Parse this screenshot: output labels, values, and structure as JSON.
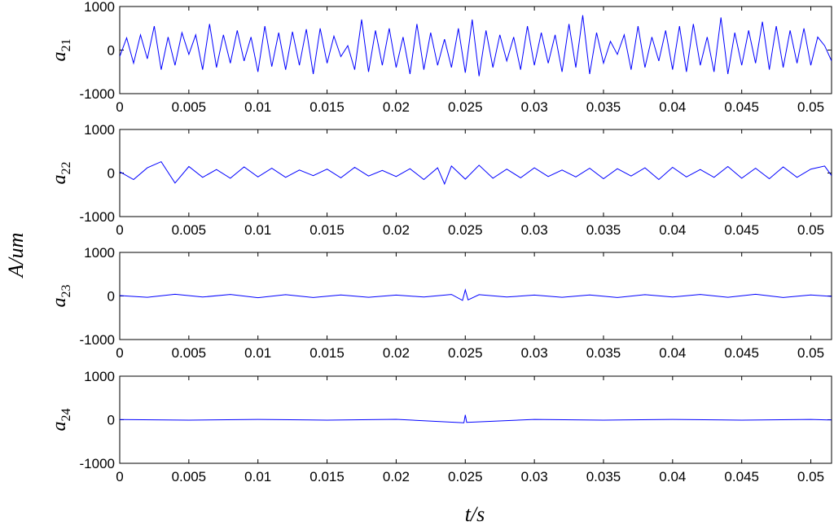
{
  "chart_data": {
    "type": "line",
    "shared_ylabel": "A/um",
    "shared_xlabel": "t/s",
    "line_color": "#0000ff",
    "xlim": [
      0,
      0.0515
    ],
    "x_ticks": [
      "0",
      "0.005",
      "0.01",
      "0.015",
      "0.02",
      "0.025",
      "0.03",
      "0.035",
      "0.04",
      "0.045",
      "0.05"
    ],
    "x_tick_values": [
      0,
      0.005,
      0.01,
      0.015,
      0.02,
      0.025,
      0.03,
      0.035,
      0.04,
      0.045,
      0.05
    ],
    "panels": [
      {
        "ylabel_main": "a",
        "ylabel_sub": "21",
        "ylim": [
          -1000,
          1000
        ],
        "y_ticks": [
          "1000",
          "0",
          "-1000"
        ],
        "series": [
          {
            "x": [
              0,
              0.0005,
              0.001,
              0.0015,
              0.002,
              0.0025,
              0.003,
              0.0035,
              0.004,
              0.0045,
              0.005,
              0.0055,
              0.006,
              0.0065,
              0.007,
              0.0075,
              0.008,
              0.0085,
              0.009,
              0.0095,
              0.01,
              0.0105,
              0.011,
              0.0115,
              0.012,
              0.0125,
              0.013,
              0.0135,
              0.014,
              0.0145,
              0.015,
              0.0155,
              0.016,
              0.0165,
              0.017,
              0.0175,
              0.018,
              0.0185,
              0.019,
              0.0195,
              0.02,
              0.0205,
              0.021,
              0.0215,
              0.022,
              0.0225,
              0.023,
              0.0235,
              0.024,
              0.0245,
              0.025,
              0.0255,
              0.026,
              0.0265,
              0.027,
              0.0275,
              0.028,
              0.0285,
              0.029,
              0.0295,
              0.03,
              0.0305,
              0.031,
              0.0315,
              0.032,
              0.0325,
              0.033,
              0.0335,
              0.034,
              0.0345,
              0.035,
              0.0355,
              0.036,
              0.0365,
              0.037,
              0.0375,
              0.038,
              0.0385,
              0.039,
              0.0395,
              0.04,
              0.0405,
              0.041,
              0.0415,
              0.042,
              0.0425,
              0.043,
              0.0435,
              0.044,
              0.0445,
              0.045,
              0.0455,
              0.046,
              0.0465,
              0.047,
              0.0475,
              0.048,
              0.0485,
              0.049,
              0.0495,
              0.05,
              0.0505,
              0.051,
              0.0515
            ],
            "y": [
              -150,
              280,
              -300,
              350,
              -200,
              550,
              -450,
              300,
              -350,
              400,
              -100,
              350,
              -450,
              600,
              -400,
              350,
              -300,
              450,
              -250,
              300,
              -500,
              550,
              -380,
              400,
              -450,
              420,
              -350,
              480,
              -550,
              500,
              -300,
              320,
              -150,
              100,
              -450,
              700,
              -500,
              450,
              -350,
              500,
              -400,
              300,
              -550,
              600,
              -450,
              400,
              -350,
              250,
              -400,
              500,
              -520,
              700,
              -600,
              450,
              -400,
              350,
              -250,
              300,
              -450,
              550,
              -350,
              400,
              -300,
              350,
              -500,
              600,
              -400,
              800,
              -550,
              400,
              -300,
              200,
              -100,
              350,
              -450,
              550,
              -400,
              300,
              -250,
              450,
              -450,
              550,
              -500,
              600,
              -350,
              300,
              -500,
              750,
              -550,
              400,
              -350,
              450,
              -300,
              650,
              -450,
              550,
              -400,
              450,
              -300,
              500,
              -350,
              300,
              100,
              -250
            ]
          }
        ]
      },
      {
        "ylabel_main": "a",
        "ylabel_sub": "22",
        "ylim": [
          -1000,
          1000
        ],
        "y_ticks": [
          "1000",
          "0",
          "-1000"
        ],
        "series": [
          {
            "x": [
              0,
              0.001,
              0.002,
              0.003,
              0.004,
              0.005,
              0.006,
              0.007,
              0.008,
              0.009,
              0.01,
              0.011,
              0.012,
              0.013,
              0.014,
              0.015,
              0.016,
              0.017,
              0.018,
              0.019,
              0.02,
              0.021,
              0.022,
              0.023,
              0.0235,
              0.024,
              0.025,
              0.026,
              0.027,
              0.028,
              0.029,
              0.03,
              0.031,
              0.032,
              0.033,
              0.034,
              0.035,
              0.036,
              0.037,
              0.038,
              0.039,
              0.04,
              0.041,
              0.042,
              0.043,
              0.044,
              0.045,
              0.046,
              0.047,
              0.048,
              0.049,
              0.05,
              0.051,
              0.0515
            ],
            "y": [
              30,
              -150,
              120,
              260,
              -230,
              150,
              -100,
              80,
              -120,
              140,
              -90,
              110,
              -100,
              70,
              -60,
              90,
              -110,
              130,
              -70,
              60,
              -80,
              100,
              -150,
              120,
              -250,
              160,
              -140,
              180,
              -120,
              90,
              -110,
              120,
              -80,
              70,
              -90,
              110,
              -130,
              100,
              -70,
              120,
              -150,
              130,
              -90,
              80,
              -100,
              150,
              -120,
              110,
              -130,
              140,
              -100,
              90,
              160,
              -60
            ]
          }
        ]
      },
      {
        "ylabel_main": "a",
        "ylabel_sub": "23",
        "ylim": [
          -1000,
          1000
        ],
        "y_ticks": [
          "1000",
          "0",
          "-1000"
        ],
        "series": [
          {
            "x": [
              0,
              0.002,
              0.004,
              0.006,
              0.008,
              0.01,
              0.012,
              0.014,
              0.016,
              0.018,
              0.02,
              0.022,
              0.024,
              0.0248,
              0.025,
              0.0252,
              0.026,
              0.028,
              0.03,
              0.032,
              0.034,
              0.036,
              0.038,
              0.04,
              0.042,
              0.044,
              0.046,
              0.048,
              0.05,
              0.0515
            ],
            "y": [
              10,
              -30,
              40,
              -25,
              35,
              -40,
              30,
              -35,
              25,
              -30,
              20,
              -25,
              35,
              -100,
              140,
              -90,
              30,
              -25,
              20,
              -30,
              25,
              -35,
              30,
              -25,
              35,
              -30,
              40,
              -35,
              25,
              -10
            ]
          }
        ]
      },
      {
        "ylabel_main": "a",
        "ylabel_sub": "24",
        "ylim": [
          -1000,
          1000
        ],
        "y_ticks": [
          "1000",
          "0",
          "-1000"
        ],
        "series": [
          {
            "x": [
              0,
              0.005,
              0.01,
              0.015,
              0.02,
              0.0249,
              0.025,
              0.0251,
              0.03,
              0.035,
              0.04,
              0.045,
              0.05,
              0.0515
            ],
            "y": [
              5,
              -10,
              8,
              -10,
              10,
              -70,
              110,
              -60,
              8,
              -10,
              8,
              -10,
              8,
              -5
            ]
          }
        ]
      }
    ]
  }
}
